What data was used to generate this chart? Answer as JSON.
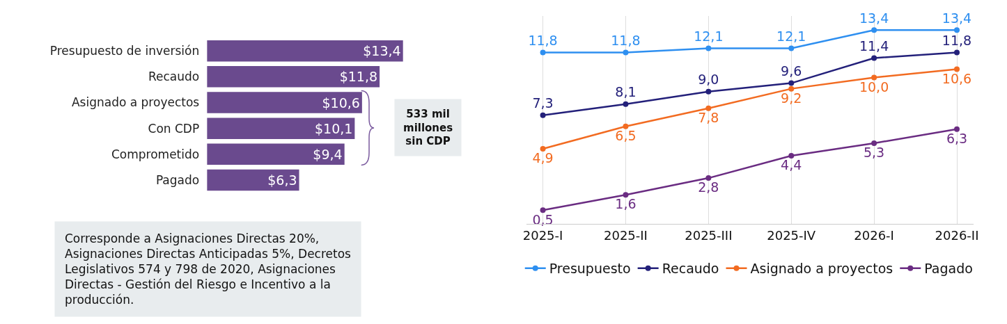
{
  "chart_data": [
    {
      "type": "bar",
      "orientation": "horizontal",
      "categories": [
        "Presupuesto de inversión",
        "Recaudo",
        "Asignado a proyectos",
        "Con CDP",
        "Comprometido",
        "Pagado"
      ],
      "values": [
        13.4,
        11.8,
        10.6,
        10.1,
        9.4,
        6.3
      ],
      "color": "#6a4a8e",
      "value_labels": [
        "$13,4",
        "$11,8",
        "$10,6",
        "$10,1",
        "$9,4",
        "$6,3"
      ],
      "tick_labels": "y",
      "grid": false,
      "legend": false,
      "annotations": [
        "533 mil millones sin CDP",
        "Corresponde a Asignaciones Directas 20%, Asignaciones Directas Anticipadas 5%, Decretos Legislativos 574 y 798 de 2020, Asignaciones Directas - Gestión del Riesgo e Incentivo a la producción."
      ]
    },
    {
      "type": "line",
      "categories": [
        "2025-I",
        "2025-II",
        "2025-III",
        "2025-IV",
        "2026-I",
        "2026-II"
      ],
      "series": [
        {
          "name": "Presupuesto",
          "color": "#2e8ff0",
          "values": [
            11.8,
            11.8,
            12.1,
            12.1,
            13.4,
            13.4
          ],
          "value_labels": [
            "11,8",
            "11,8",
            "12,1",
            "12,1",
            "13,4",
            "13,4"
          ]
        },
        {
          "name": "Recaudo",
          "color": "#23207a",
          "values": [
            7.3,
            8.1,
            9.0,
            9.6,
            11.4,
            11.8
          ],
          "value_labels": [
            "7,3",
            "8,1",
            "9,0",
            "9,6",
            "11,4",
            "11,8"
          ]
        },
        {
          "name": "Asignado a proyectos",
          "color": "#f26b21",
          "values": [
            4.9,
            6.5,
            7.8,
            9.2,
            10.0,
            10.6
          ],
          "value_labels": [
            "4,9",
            "6,5",
            "7,8",
            "9,2",
            "10,0",
            "10,6"
          ]
        },
        {
          "name": "Pagado",
          "color": "#6a2c82",
          "values": [
            0.5,
            1.6,
            2.8,
            4.4,
            5.3,
            6.3
          ],
          "value_labels": [
            "0,5",
            "1,6",
            "2,8",
            "4,4",
            "5,3",
            "6,3"
          ]
        }
      ],
      "tick_labels": "x",
      "grid": "x",
      "legend": "bottom",
      "marker": "circle",
      "line_style": "solid"
    }
  ]
}
